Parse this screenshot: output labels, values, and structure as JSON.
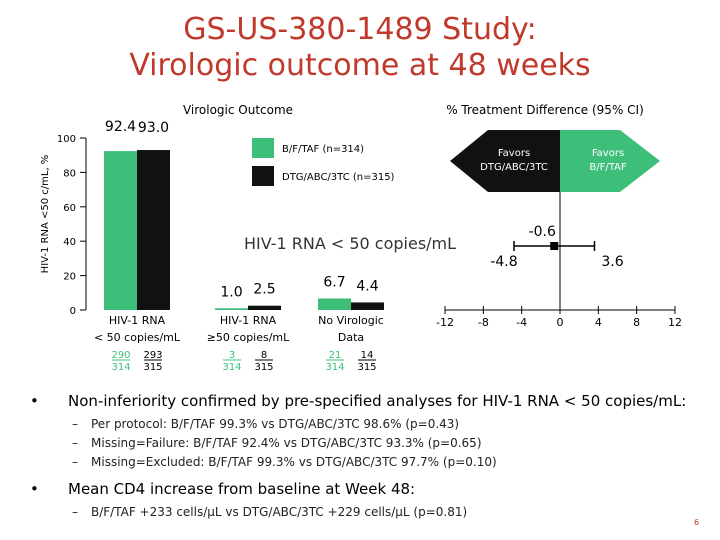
{
  "title": {
    "line1": "GS-US-380-1489 Study:",
    "line2": "Virologic outcome at 48 weeks"
  },
  "colors": {
    "title": "#c0392b",
    "bftaf": "#3dbf7a",
    "dtg": "#111111",
    "arrow_left": "#111111",
    "arrow_right": "#3dbf7a"
  },
  "chart_data": [
    {
      "type": "bar",
      "title": "Virologic Outcome",
      "ylabel": "HIV-1 RNA <50 c/mL, %",
      "ylim": [
        0,
        100
      ],
      "yticks": [
        0,
        20,
        40,
        60,
        80,
        100
      ],
      "legend": [
        {
          "name": "B/F/TAF (n=314)",
          "color": "#3dbf7a"
        },
        {
          "name": "DTG/ABC/3TC (n=315)",
          "color": "#111111"
        }
      ],
      "categories": [
        {
          "label1": "HIV-1 RNA",
          "label2": "< 50 copies/mL",
          "num1": "290",
          "den1": "314",
          "num2": "293",
          "den2": "315"
        },
        {
          "label1": "HIV-1 RNA",
          "label2": "≥50 copies/mL",
          "num1": "3",
          "den1": "314",
          "num2": "8",
          "den2": "315"
        },
        {
          "label1": "No Virologic",
          "label2": "Data",
          "num1": "21",
          "den1": "314",
          "num2": "14",
          "den2": "315"
        }
      ],
      "series": [
        {
          "name": "B/F/TAF (n=314)",
          "values": [
            92.4,
            1.0,
            6.7
          ],
          "labels": [
            "92.4",
            "1.0",
            "6.7"
          ]
        },
        {
          "name": "DTG/ABC/3TC (n=315)",
          "values": [
            93.0,
            2.5,
            4.4
          ],
          "labels": [
            "93.0",
            "2.5",
            "4.4"
          ]
        }
      ]
    },
    {
      "type": "scatter",
      "title": "% Treatment Difference (95% CI)",
      "xlim": [
        -12,
        12
      ],
      "xticks": [
        "-12",
        "-8",
        "-4",
        "0",
        "4",
        "8",
        "12"
      ],
      "point": {
        "label": "HIV-1 RNA < 50 copies/mL",
        "estimate": -0.6,
        "lower": -4.8,
        "upper": 3.6,
        "est_label": "-0.6",
        "lower_label": "-4.8",
        "upper_label": "3.6"
      },
      "arrows": {
        "left": "Favors DTG/ABC/3TC",
        "right": "Favors B/F/TAF",
        "left_line1": "Favors",
        "left_line2": "DTG/ABC/3TC",
        "right_line1": "Favors",
        "right_line2": "B/F/TAF"
      }
    }
  ],
  "bullets": [
    {
      "text": "Non-inferiority confirmed by pre-specified analyses for HIV-1 RNA < 50 copies/mL:",
      "subs": [
        "Per protocol: B/F/TAF 99.3% vs DTG/ABC/3TC 98.6% (p=0.43)",
        "Missing=Failure: B/F/TAF 92.4% vs DTG/ABC/3TC 93.3% (p=0.65)",
        "Missing=Excluded: B/F/TAF 99.3% vs DTG/ABC/3TC 97.7% (p=0.10)"
      ]
    },
    {
      "text": "Mean CD4 increase from baseline at Week 48:",
      "subs": [
        "B/F/TAF +233 cells/μL vs DTG/ABC/3TC +229 cells/μL (p=0.81)"
      ]
    }
  ],
  "page_number": "6"
}
